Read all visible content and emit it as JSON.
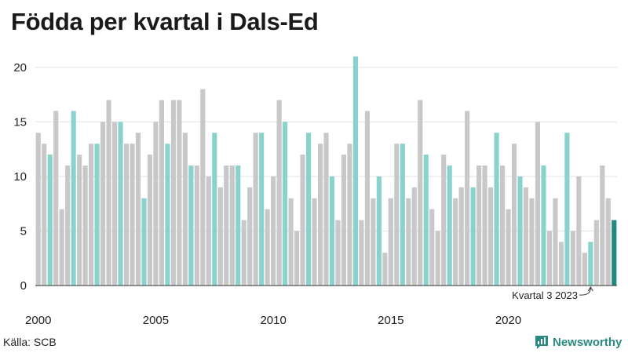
{
  "title": "Födda per kvartal i Dals-Ed",
  "source": "Källa: SCB",
  "brand": "Newsworthy",
  "colors": {
    "bar": "#c8c8c8",
    "highlight": "#88d4cc",
    "last": "#1e8a80",
    "grid": "#e2e2e2",
    "text": "#222222",
    "brand": "#2a8a80"
  },
  "chart_data": {
    "type": "bar",
    "title": "Födda per kvartal i Dals-Ed",
    "xlabel": "",
    "ylabel": "",
    "ylim": [
      0,
      22
    ],
    "yticks": [
      0,
      5,
      10,
      15,
      20
    ],
    "xtick_labels": [
      "2000",
      "2005",
      "2010",
      "2015",
      "2020"
    ],
    "grid": true,
    "annotation": "Kvartal 3 2023",
    "categories": [
      "2000 K1",
      "2000 K2",
      "2000 K3",
      "2000 K4",
      "2001 K1",
      "2001 K2",
      "2001 K3",
      "2001 K4",
      "2002 K1",
      "2002 K2",
      "2002 K3",
      "2002 K4",
      "2003 K1",
      "2003 K2",
      "2003 K3",
      "2003 K4",
      "2004 K1",
      "2004 K2",
      "2004 K3",
      "2004 K4",
      "2005 K1",
      "2005 K2",
      "2005 K3",
      "2005 K4",
      "2006 K1",
      "2006 K2",
      "2006 K3",
      "2006 K4",
      "2007 K1",
      "2007 K2",
      "2007 K3",
      "2007 K4",
      "2008 K1",
      "2008 K2",
      "2008 K3",
      "2008 K4",
      "2009 K1",
      "2009 K2",
      "2009 K3",
      "2009 K4",
      "2010 K1",
      "2010 K2",
      "2010 K3",
      "2010 K4",
      "2011 K1",
      "2011 K2",
      "2011 K3",
      "2011 K4",
      "2012 K1",
      "2012 K2",
      "2012 K3",
      "2012 K4",
      "2013 K1",
      "2013 K2",
      "2013 K3",
      "2013 K4",
      "2014 K1",
      "2014 K2",
      "2014 K3",
      "2014 K4",
      "2015 K1",
      "2015 K2",
      "2015 K3",
      "2015 K4",
      "2016 K1",
      "2016 K2",
      "2016 K3",
      "2016 K4",
      "2017 K1",
      "2017 K2",
      "2017 K3",
      "2017 K4",
      "2018 K1",
      "2018 K2",
      "2018 K3",
      "2018 K4",
      "2019 K1",
      "2019 K2",
      "2019 K3",
      "2019 K4",
      "2020 K1",
      "2020 K2",
      "2020 K3",
      "2020 K4",
      "2021 K1",
      "2021 K2",
      "2021 K3",
      "2021 K4",
      "2022 K1",
      "2022 K2",
      "2022 K3",
      "2022 K4",
      "2023 K1",
      "2023 K2",
      "2023 K3",
      "2023 K4",
      "2024 K1",
      "2024 K2",
      "2024 K3"
    ],
    "values": [
      14,
      13,
      12,
      16,
      7,
      11,
      16,
      12,
      11,
      13,
      13,
      15,
      17,
      15,
      15,
      13,
      13,
      14,
      8,
      12,
      15,
      17,
      13,
      17,
      17,
      14,
      11,
      11,
      18,
      10,
      14,
      9,
      11,
      11,
      11,
      6,
      9,
      14,
      14,
      7,
      10,
      17,
      15,
      8,
      5,
      12,
      14,
      8,
      13,
      14,
      10,
      6,
      12,
      13,
      21,
      6,
      16,
      8,
      10,
      3,
      8,
      13,
      13,
      8,
      9,
      17,
      12,
      7,
      5,
      12,
      11,
      8,
      9,
      16,
      9,
      11,
      11,
      9,
      14,
      11,
      7,
      13,
      10,
      9,
      8,
      15,
      11,
      5,
      8,
      4,
      14,
      5,
      10,
      3,
      4,
      6,
      11,
      8,
      6
    ],
    "highlight_quarter": 3,
    "highlight_last": true
  }
}
